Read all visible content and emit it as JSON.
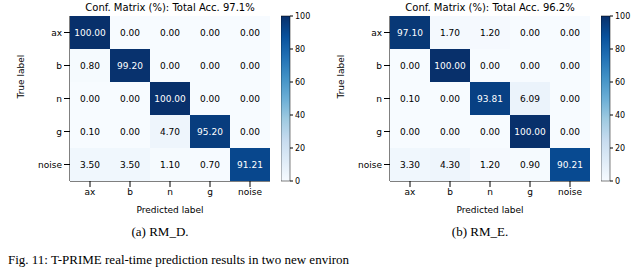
{
  "figure_caption": "Fig. 11: T-PRIME real-time prediction results in two new environ",
  "chart_data": [
    {
      "type": "heatmap",
      "title": "Conf. Matrix (%): Total Acc. 97.1%",
      "caption": "(a) RM_D.",
      "x_label": "Predicted label",
      "y_label": "True label",
      "x_categories": [
        "ax",
        "b",
        "n",
        "g",
        "noise"
      ],
      "y_categories": [
        "ax",
        "b",
        "n",
        "g",
        "noise"
      ],
      "cells": [
        [
          100,
          0,
          0,
          0,
          0
        ],
        [
          0.8,
          99.2,
          0,
          0,
          0
        ],
        [
          0,
          0,
          100,
          0,
          0
        ],
        [
          0.1,
          0,
          4.7,
          95.2,
          0
        ],
        [
          3.5,
          3.5,
          1.1,
          0.7,
          91.21
        ]
      ],
      "value_labels": [
        [
          "100.00",
          "0.00",
          "0.00",
          "0.00",
          "0.00"
        ],
        [
          "0.80",
          "99.20",
          "0.00",
          "0.00",
          "0.00"
        ],
        [
          "0.00",
          "0.00",
          "100.00",
          "0.00",
          "0.00"
        ],
        [
          "0.10",
          "0.00",
          "4.70",
          "95.20",
          "0.00"
        ],
        [
          "3.50",
          "3.50",
          "1.10",
          "0.70",
          "91.21"
        ]
      ],
      "colorbar_range": [
        0,
        100
      ],
      "colorbar_ticks": [
        0,
        20,
        40,
        60,
        80,
        100
      ]
    },
    {
      "type": "heatmap",
      "title": "Conf. Matrix (%): Total Acc. 96.2%",
      "caption": "(b) RM_E.",
      "x_label": "Predicted label",
      "y_label": "True label",
      "x_categories": [
        "ax",
        "b",
        "n",
        "g",
        "noise"
      ],
      "y_categories": [
        "ax",
        "b",
        "n",
        "g",
        "noise"
      ],
      "cells": [
        [
          97.1,
          1.7,
          1.2,
          0,
          0
        ],
        [
          0,
          100,
          0,
          0,
          0
        ],
        [
          0.1,
          0,
          93.81,
          6.09,
          0
        ],
        [
          0,
          0,
          0,
          100,
          0
        ],
        [
          3.3,
          4.3,
          1.2,
          0.9,
          90.21
        ]
      ],
      "value_labels": [
        [
          "97.10",
          "1.70",
          "1.20",
          "0.00",
          "0.00"
        ],
        [
          "0.00",
          "100.00",
          "0.00",
          "0.00",
          "0.00"
        ],
        [
          "0.10",
          "0.00",
          "93.81",
          "6.09",
          "0.00"
        ],
        [
          "0.00",
          "0.00",
          "0.00",
          "100.00",
          "0.00"
        ],
        [
          "3.30",
          "4.30",
          "1.20",
          "0.90",
          "90.21"
        ]
      ],
      "colorbar_range": [
        0,
        100
      ],
      "colorbar_ticks": [
        0,
        20,
        40,
        60,
        80,
        100
      ]
    }
  ]
}
